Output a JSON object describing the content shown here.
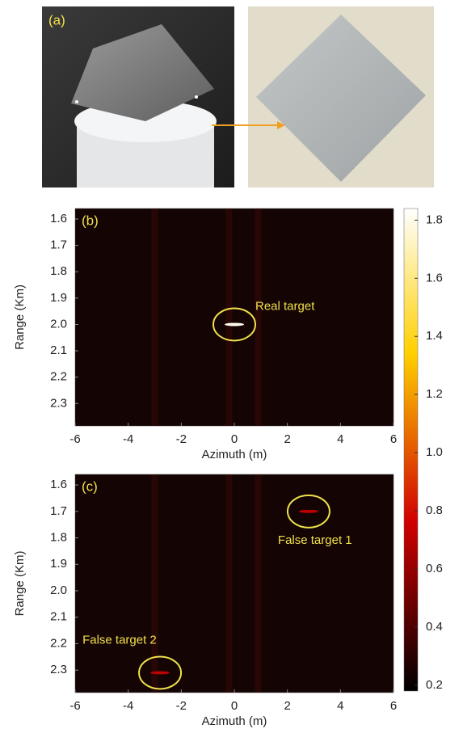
{
  "photo_panel": {
    "label": "(a)"
  },
  "colorbar": {
    "lim": [
      0.18,
      1.84
    ],
    "ticks": [
      0.2,
      0.4,
      0.6,
      0.8,
      {
        "value": 1,
        "label": "1.0"
      },
      1.2,
      1.4,
      1.6,
      1.8
    ]
  },
  "chart_data": [
    {
      "type": "heatmap",
      "panel_label": "(b)",
      "xlabel": "Azimuth (m)",
      "ylabel": "Range (Km)",
      "xlim": [
        -6,
        6
      ],
      "xticks": [
        -6,
        -4,
        -2,
        0,
        2,
        4,
        6
      ],
      "ylim": [
        1.56,
        2.385
      ],
      "y_inverted": true,
      "yticks": [
        1.6,
        1.7,
        1.8,
        1.9,
        {
          "value": 2,
          "label": "2.0"
        },
        2.1,
        2.2,
        2.3
      ],
      "targets": [
        {
          "label": "Real target",
          "x": 0,
          "y": 2.0,
          "value": 1.8
        }
      ]
    },
    {
      "type": "heatmap",
      "panel_label": "(c)",
      "xlabel": "Azimuth (m)",
      "ylabel": "Range (Km)",
      "xlim": [
        -6,
        6
      ],
      "xticks": [
        -6,
        -4,
        -2,
        0,
        2,
        4,
        6
      ],
      "ylim": [
        1.56,
        2.385
      ],
      "y_inverted": true,
      "yticks": [
        1.6,
        1.7,
        1.8,
        1.9,
        {
          "value": 2,
          "label": "2.0"
        },
        2.1,
        2.2,
        2.3
      ],
      "targets": [
        {
          "label": "False target 1",
          "x": 2.8,
          "y": 1.7,
          "value": 0.7
        },
        {
          "label": "False target 2",
          "x": -2.8,
          "y": 2.31,
          "value": 0.7
        }
      ]
    }
  ]
}
